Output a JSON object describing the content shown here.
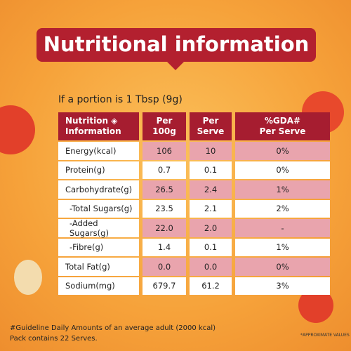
{
  "title": "Nutritional information",
  "portion": "If a portion is 1 Tbsp (9g)",
  "table": {
    "header": [
      [
        "Nutrition ◈",
        "Information"
      ],
      [
        "Per",
        "100g"
      ],
      [
        "Per",
        "Serve"
      ],
      [
        "%GDA#",
        "Per Serve"
      ]
    ],
    "rows": [
      [
        "Energy(kcal)",
        "106",
        "10",
        "0%"
      ],
      [
        "Protein(g)",
        "0.7",
        "0.1",
        "0%"
      ],
      [
        "Carbohydrate(g)",
        "26.5",
        "2.4",
        "1%"
      ],
      [
        "-Total Sugars(g)",
        "23.5",
        "2.1",
        "2%"
      ],
      [
        "-Added Sugars(g)",
        "22.0",
        "2.0",
        "-"
      ],
      [
        "-Fibre(g)",
        "1.4",
        "0.1",
        "1%"
      ],
      [
        "Total Fat(g)",
        "0.0",
        "0.0",
        "0%"
      ],
      [
        "Sodium(mg)",
        "679.7",
        "61.2",
        "3%"
      ]
    ]
  },
  "footnotes": [
    "#Guideline Daily Amounts of an average adult (2000 kcal)",
    "Pack contains 22 Serves."
  ],
  "note": "*APPROXIMATE VALUES"
}
